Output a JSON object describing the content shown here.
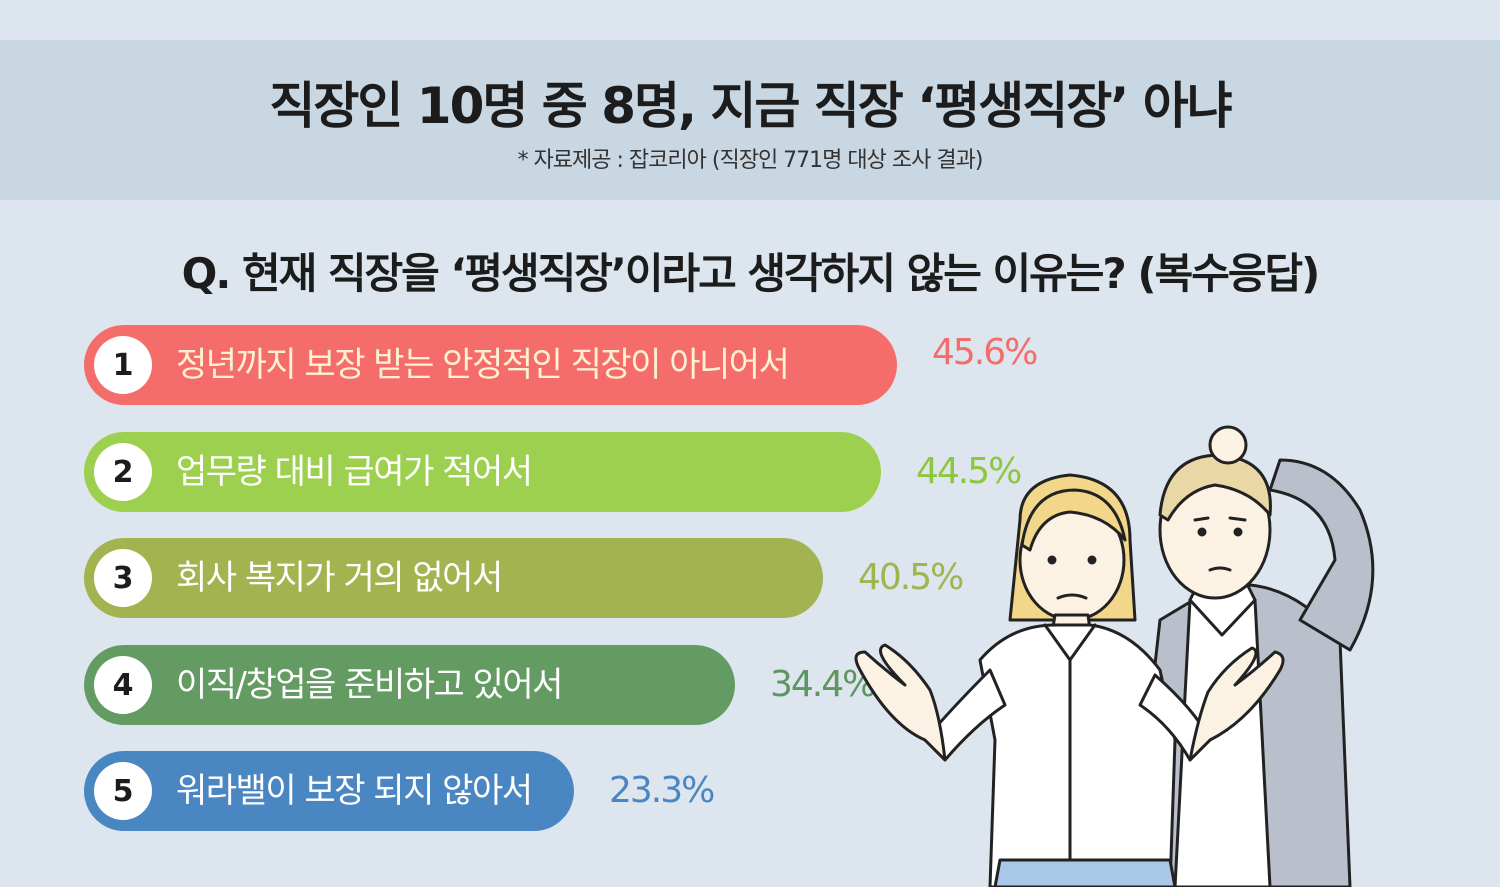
{
  "header": {
    "title": "직장인 10명 중 8명, 지금 직장 ‘평생직장’ 아냐",
    "source": "* 자료제공 : 잡코리아 (직장인 771명 대상 조사 결과)"
  },
  "question": "Q. 현재 직장을 ‘평생직장’이라고 생각하지 않는 이유는? (복수응답)",
  "chart_data": {
    "type": "bar",
    "orientation": "horizontal",
    "title": "Q. 현재 직장을 ‘평생직장’이라고 생각하지 않는 이유는? (복수응답)",
    "unit": "%",
    "categories": [
      "정년까지 보장 받는 안정적인 직장이 아니어서",
      "업무량 대비 급여가 적어서",
      "회사 복지가 거의 없어서",
      "이직/창업을 준비하고 있어서",
      "워라밸이 보장 되지 않아서"
    ],
    "ranks": [
      "1",
      "2",
      "3",
      "4",
      "5"
    ],
    "values": [
      45.6,
      44.5,
      40.5,
      34.4,
      23.3
    ],
    "value_labels": [
      "45.6%",
      "44.5%",
      "40.5%",
      "34.4%",
      "23.3%"
    ],
    "colors": [
      "#f56d6b",
      "#9dd04e",
      "#a3b34f",
      "#639b63",
      "#4a87c2"
    ],
    "label_colors": [
      "#fff2d4",
      "#ffffff",
      "#ffffff",
      "#ffffff",
      "#ffffff"
    ],
    "value_colors": [
      "#f56d6b",
      "#8fc640",
      "#a3b34f",
      "#5d975d",
      "#4a87c2"
    ]
  },
  "illustration": {
    "icon": "confused-couple-shrug-icon",
    "colors": {
      "hair_blonde": "#f2d68a",
      "hair_light": "#e9d7a5",
      "skin": "#fbf2e4",
      "shirt": "#ffffff",
      "jacket": "#b9c0cc",
      "outline": "#222222",
      "jeans": "#a9c8e8"
    }
  }
}
